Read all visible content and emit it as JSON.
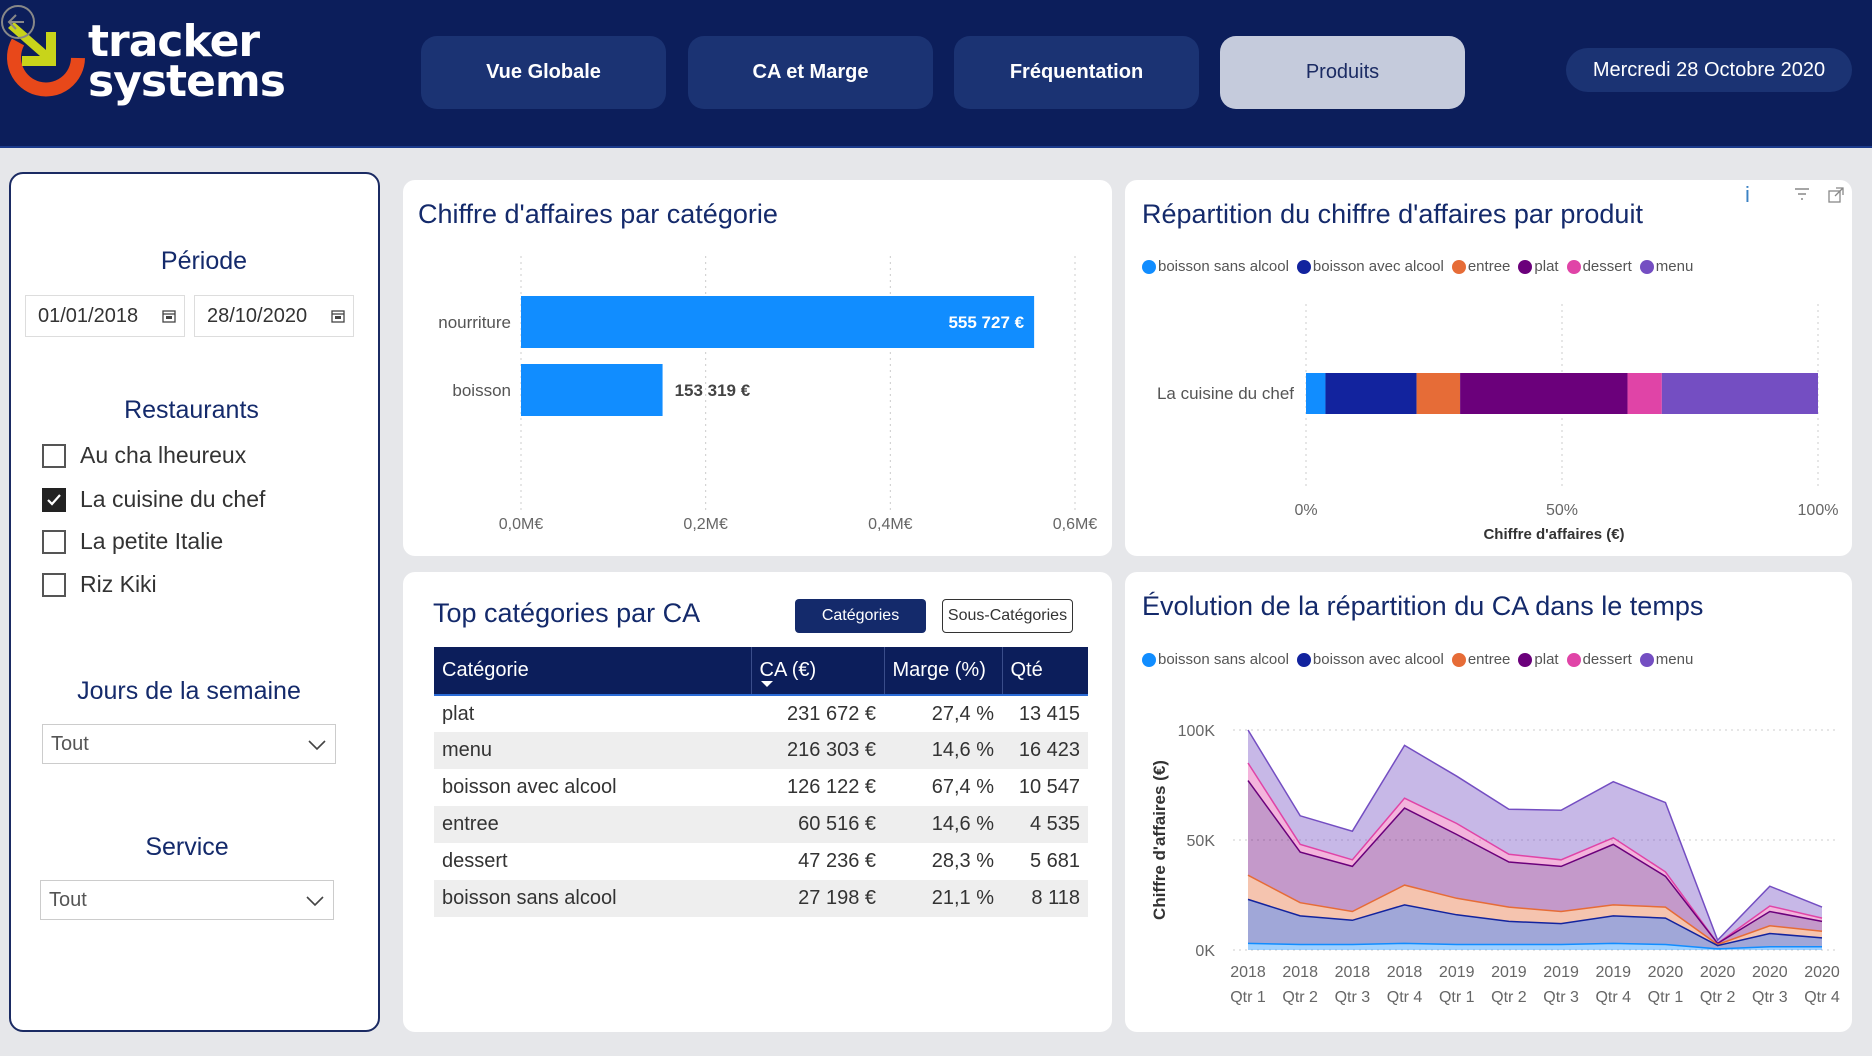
{
  "header": {
    "logo_line1": "tracker",
    "logo_line2": "systems",
    "nav": [
      "Vue Globale",
      "CA et Marge",
      "Fréquentation",
      "Produits"
    ],
    "active_nav": "Produits",
    "date": "Mercredi 28 Octobre 2020"
  },
  "filters": {
    "period_title": "Période",
    "date_from": "01/01/2018",
    "date_to": "28/10/2020",
    "restaurants_title": "Restaurants",
    "restaurants": [
      {
        "label": "Au cha lheureux",
        "checked": false
      },
      {
        "label": "La cuisine du chef",
        "checked": true
      },
      {
        "label": "La petite Italie",
        "checked": false
      },
      {
        "label": "Riz Kiki",
        "checked": false
      }
    ],
    "days_title": "Jours de la semaine",
    "days_value": "Tout",
    "service_title": "Service",
    "service_value": "Tout"
  },
  "colors": {
    "boisson_sans_alcool": "#118dff",
    "boisson_avec_alcool": "#12239e",
    "entree": "#e66c37",
    "plat": "#6b007b",
    "dessert": "#e044a7",
    "menu": "#744ec2",
    "navy": "#0c1e5b"
  },
  "legend": [
    {
      "label": "boisson sans alcool",
      "color": "#118dff"
    },
    {
      "label": "boisson avec alcool",
      "color": "#12239e"
    },
    {
      "label": "entree",
      "color": "#e66c37"
    },
    {
      "label": "plat",
      "color": "#6b007b"
    },
    {
      "label": "dessert",
      "color": "#e044a7"
    },
    {
      "label": "menu",
      "color": "#744ec2"
    }
  ],
  "chart_data": [
    {
      "type": "bar",
      "orientation": "horizontal",
      "title": "Chiffre d'affaires par catégorie",
      "categories": [
        "nourriture",
        "boisson"
      ],
      "values": [
        555727,
        153319
      ],
      "data_labels": [
        "555 727 €",
        "153 319 €"
      ],
      "x_ticks": [
        "0,0M€",
        "0,2M€",
        "0,4M€",
        "0,6M€"
      ],
      "xlim": [
        0,
        600000
      ],
      "color": "#118dff",
      "grid": true
    },
    {
      "type": "bar",
      "orientation": "horizontal",
      "stacked": "100%",
      "title": "Répartition du chiffre d'affaires par produit",
      "categories": [
        "La cuisine du chef"
      ],
      "series": [
        {
          "name": "boisson sans alcool",
          "values": [
            3.8
          ]
        },
        {
          "name": "boisson avec alcool",
          "values": [
            17.8
          ]
        },
        {
          "name": "entree",
          "values": [
            8.5
          ]
        },
        {
          "name": "plat",
          "values": [
            32.7
          ]
        },
        {
          "name": "dessert",
          "values": [
            6.7
          ]
        },
        {
          "name": "menu",
          "values": [
            30.5
          ]
        }
      ],
      "x_ticks": [
        "0%",
        "50%",
        "100%"
      ],
      "xlabel": "Chiffre d'affaires (€)",
      "xlim": [
        0,
        100
      ],
      "grid": true,
      "legend": "top"
    },
    {
      "type": "area",
      "stacked": true,
      "title": "Évolution de la répartition du CA dans le temps",
      "x": [
        "2018 Qtr 1",
        "2018 Qtr 2",
        "2018 Qtr 3",
        "2018 Qtr 4",
        "2019 Qtr 1",
        "2019 Qtr 2",
        "2019 Qtr 3",
        "2019 Qtr 4",
        "2020 Qtr 1",
        "2020 Qtr 2",
        "2020 Qtr 3",
        "2020 Qtr 4"
      ],
      "x_ticks_top": [
        "2018",
        "2018",
        "2018",
        "2018",
        "2019",
        "2019",
        "2019",
        "2019",
        "2020",
        "2020",
        "2020",
        "2020"
      ],
      "x_ticks_bottom": [
        "Qtr 1",
        "Qtr 2",
        "Qtr 3",
        "Qtr 4",
        "Qtr 1",
        "Qtr 2",
        "Qtr 3",
        "Qtr 4",
        "Qtr 1",
        "Qtr 2",
        "Qtr 3",
        "Qtr 4"
      ],
      "series": [
        {
          "name": "boisson sans alcool",
          "values": [
            3000,
            2500,
            2500,
            3000,
            2500,
            2500,
            2500,
            3000,
            2500,
            500,
            1500,
            1500
          ]
        },
        {
          "name": "boisson avec alcool",
          "values": [
            20000,
            13000,
            11000,
            17500,
            13500,
            10500,
            9500,
            12500,
            12000,
            1500,
            6000,
            4000
          ]
        },
        {
          "name": "entree",
          "values": [
            11000,
            6000,
            4000,
            9000,
            7500,
            6500,
            5500,
            5000,
            5000,
            500,
            3500,
            3000
          ]
        },
        {
          "name": "plat",
          "values": [
            43000,
            23000,
            20500,
            35000,
            29000,
            20500,
            20500,
            27500,
            14000,
            500,
            6500,
            4500
          ]
        },
        {
          "name": "dessert",
          "values": [
            8000,
            3500,
            3000,
            4500,
            5000,
            3500,
            3000,
            3000,
            2000,
            0,
            2500,
            1500
          ]
        },
        {
          "name": "menu",
          "values": [
            15000,
            13000,
            13000,
            24000,
            21500,
            20500,
            22500,
            25500,
            31500,
            1500,
            9000,
            5000
          ]
        }
      ],
      "y_ticks": [
        "0K",
        "50K",
        "100K"
      ],
      "ylabel": "Chiffre d'affaires (€)",
      "ylim": [
        0,
        100000
      ],
      "grid": true,
      "legend": "top"
    }
  ],
  "bar_card": {
    "title": "Chiffre d'affaires par catégorie"
  },
  "stack_card": {
    "title": "Répartition du chiffre d'affaires par produit",
    "xlabel": "Chiffre d'affaires (€)",
    "info_icon": "i"
  },
  "area_card": {
    "title": "Évolution de la répartition du CA dans le temps",
    "ylabel": "Chiffre d'affaires (€)"
  },
  "top_card": {
    "title": "Top catégories par CA",
    "toggle_on": "Catégories",
    "toggle_off": "Sous-Catégories",
    "columns": [
      "Catégorie",
      "CA (€)",
      "Marge (%)",
      "Qté"
    ],
    "rows": [
      [
        "plat",
        "231 672 €",
        "27,4 %",
        "13 415"
      ],
      [
        "menu",
        "216 303 €",
        "14,6 %",
        "16 423"
      ],
      [
        "boisson avec alcool",
        "126 122 €",
        "67,4 %",
        "10 547"
      ],
      [
        "entree",
        "60 516 €",
        "14,6 %",
        "4 535"
      ],
      [
        "dessert",
        "47 236 €",
        "28,3 %",
        "5 681"
      ],
      [
        "boisson sans alcool",
        "27 198 €",
        "21,1 %",
        "8 118"
      ]
    ]
  }
}
